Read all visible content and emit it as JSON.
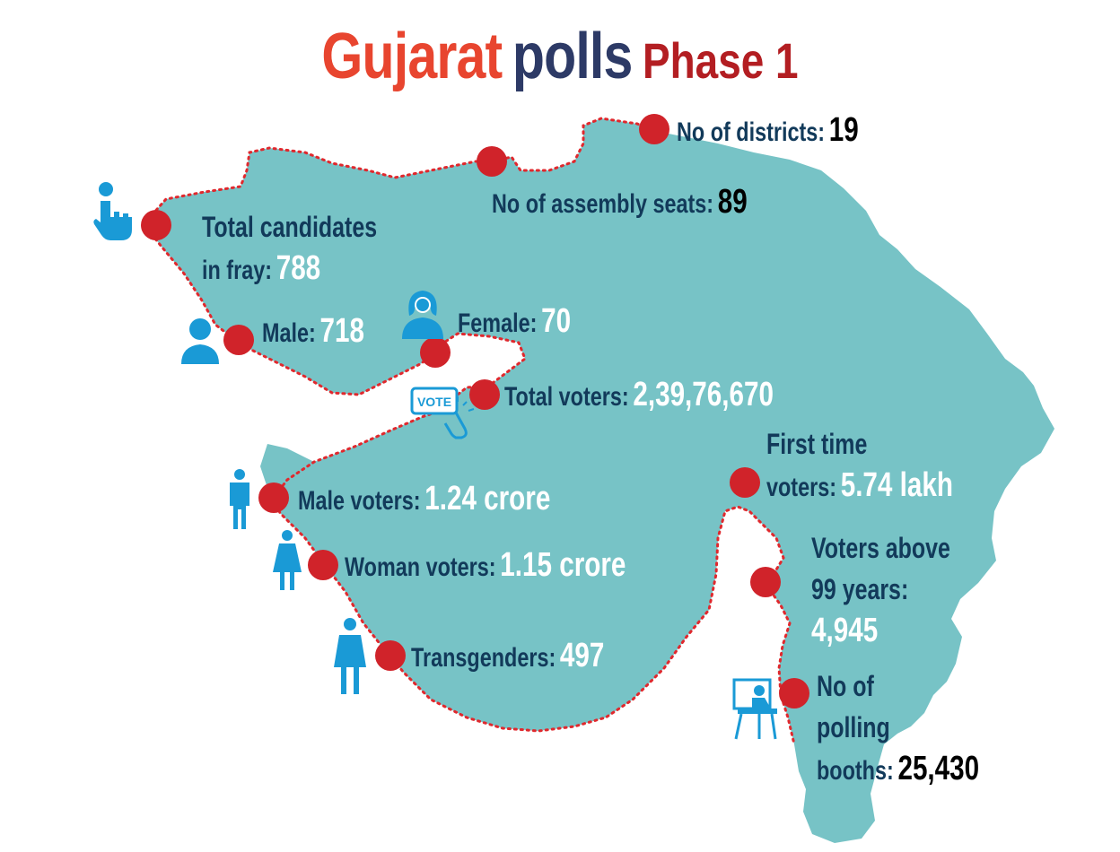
{
  "title": {
    "word1": "Gujarat",
    "word2": "polls",
    "word3": "Phase 1"
  },
  "colors": {
    "title_word1": "#e8452f",
    "title_word2": "#2d3a66",
    "title_word3": "#b31e22",
    "map_fill": "#77c3c6",
    "marker": "#d0232a",
    "label_text": "#123a5a",
    "value_white": "#ffffff",
    "value_black": "#000000",
    "icon_blue": "#1a9ad6"
  },
  "stats": {
    "districts": {
      "label": "No of districts:",
      "value": "19"
    },
    "seats": {
      "label": "No of assembly seats:",
      "value": "89"
    },
    "candidates": {
      "label_line1": "Total candidates",
      "label_line2": "in fray:",
      "value": "788"
    },
    "male": {
      "label": "Male:",
      "value": "718"
    },
    "female": {
      "label": "Female:",
      "value": "70"
    },
    "total_voters": {
      "label": "Total voters:",
      "value": "2,39,76,670"
    },
    "male_voters": {
      "label": "Male voters:",
      "value": "1.24 crore"
    },
    "woman_voters": {
      "label": "Woman voters:",
      "value": "1.15 crore"
    },
    "transgenders": {
      "label": "Transgenders:",
      "value": "497"
    },
    "first_time": {
      "label_line1": "First time",
      "label_line2": "voters:",
      "value": "5.74 lakh"
    },
    "above99": {
      "label_line1": "Voters above",
      "label_line2": "99 years:",
      "value": "4,945"
    },
    "booths": {
      "label_line1": "No of",
      "label_line2": "polling",
      "label_line3": "booths:",
      "value": "25,430"
    }
  },
  "icons": [
    "hand-pointer-icon",
    "male-avatar-icon",
    "female-avatar-icon",
    "vote-card-icon",
    "man-icon",
    "woman-icon",
    "transgender-icon",
    "polling-booth-icon"
  ],
  "vote_icon_text": "VOTE"
}
